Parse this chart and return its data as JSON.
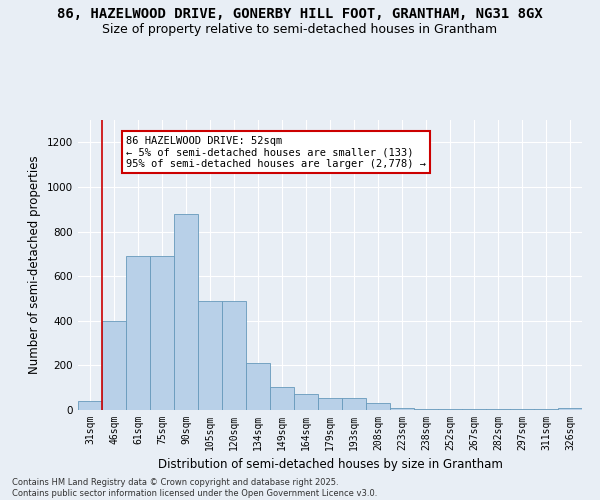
{
  "title_line1": "86, HAZELWOOD DRIVE, GONERBY HILL FOOT, GRANTHAM, NG31 8GX",
  "title_line2": "Size of property relative to semi-detached houses in Grantham",
  "xlabel": "Distribution of semi-detached houses by size in Grantham",
  "ylabel": "Number of semi-detached properties",
  "categories": [
    "31sqm",
    "46sqm",
    "61sqm",
    "75sqm",
    "90sqm",
    "105sqm",
    "120sqm",
    "134sqm",
    "149sqm",
    "164sqm",
    "179sqm",
    "193sqm",
    "208sqm",
    "223sqm",
    "238sqm",
    "252sqm",
    "267sqm",
    "282sqm",
    "297sqm",
    "311sqm",
    "326sqm"
  ],
  "values": [
    40,
    400,
    690,
    690,
    880,
    490,
    490,
    210,
    105,
    70,
    55,
    55,
    30,
    10,
    5,
    5,
    5,
    5,
    5,
    5,
    10
  ],
  "bar_color": "#b8d0e8",
  "bar_edge_color": "#6699bb",
  "annotation_box_text": "86 HAZELWOOD DRIVE: 52sqm\n← 5% of semi-detached houses are smaller (133)\n95% of semi-detached houses are larger (2,778) →",
  "annotation_box_color": "#ffffff",
  "annotation_box_edge_color": "#cc0000",
  "vline_color": "#cc0000",
  "vline_x_index": 1,
  "ylim": [
    0,
    1300
  ],
  "yticks": [
    0,
    200,
    400,
    600,
    800,
    1000,
    1200
  ],
  "bg_color": "#e8eef5",
  "grid_color": "#ffffff",
  "footer_text": "Contains HM Land Registry data © Crown copyright and database right 2025.\nContains public sector information licensed under the Open Government Licence v3.0.",
  "title_fontsize": 10,
  "subtitle_fontsize": 9,
  "axis_label_fontsize": 8.5,
  "tick_fontsize": 7,
  "footer_fontsize": 6,
  "annotation_fontsize": 7.5
}
